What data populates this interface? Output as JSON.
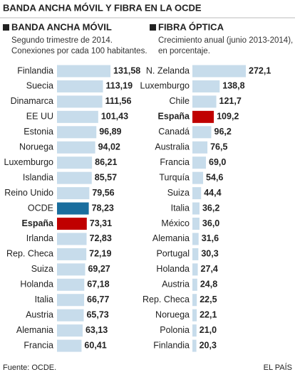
{
  "title": "BANDA ANCHA MÓVIL Y FIBRA EN LA OCDE",
  "source": "Fuente: OCDE.",
  "brand": "EL PAÍS",
  "chart_data": [
    {
      "type": "bar",
      "orientation": "horizontal",
      "title": "BANDA ANCHA MÓVIL",
      "subtitle": [
        "Segundo trimestre de 2014.",
        "Conexiones por cada 100 habitantes."
      ],
      "categories": [
        "Finlandia",
        "Suecia",
        "Dinamarca",
        "EE UU",
        "Estonia",
        "Noruega",
        "Luxemburgo",
        "Islandia",
        "Reino Unido",
        "OCDE",
        "España",
        "Irlanda",
        "Rep. Checa",
        "Suiza",
        "Holanda",
        "Italia",
        "Austria",
        "Alemania",
        "Francia"
      ],
      "values": [
        131.58,
        113.19,
        111.56,
        101.43,
        96.89,
        94.02,
        86.21,
        85.57,
        79.56,
        78.23,
        73.31,
        72.83,
        72.19,
        69.27,
        67.18,
        66.77,
        65.73,
        63.13,
        60.41
      ],
      "value_labels": [
        "131,58",
        "113,19",
        "111,56",
        "101,43",
        "96,89",
        "94,02",
        "86,21",
        "85,57",
        "79,56",
        "78,23",
        "73,31",
        "72,83",
        "72,19",
        "69,27",
        "67,18",
        "66,77",
        "65,73",
        "63,13",
        "60,41"
      ],
      "color": "#c7dceb",
      "highlight": {
        "9": "#1a6e9e",
        "10": "#c00000"
      },
      "bold": [
        10
      ]
    },
    {
      "type": "bar",
      "orientation": "horizontal",
      "title": "FIBRA ÓPTICA",
      "subtitle": [
        "Crecimiento anual (junio 2013-2014),",
        "en porcentaje."
      ],
      "categories": [
        "N. Zelanda",
        "Luxemburgo",
        "Chile",
        "España",
        "Canadá",
        "Australia",
        "Francia",
        "Turquía",
        "Suiza",
        "Italia",
        "México",
        "Alemania",
        "Portugal",
        "Holanda",
        "Austria",
        "Rep. Checa",
        "Noruega",
        "Polonia",
        "Finlandia"
      ],
      "values": [
        272.1,
        138.8,
        121.7,
        109.2,
        96.2,
        76.5,
        69.0,
        54.6,
        44.4,
        36.2,
        36.0,
        31.6,
        30.3,
        27.4,
        24.8,
        22.5,
        22.1,
        21.0,
        20.3
      ],
      "value_labels": [
        "272,1",
        "138,8",
        "121,7",
        "109,2",
        "96,2",
        "76,5",
        "69,0",
        "54,6",
        "44,4",
        "36,2",
        "36,0",
        "31,6",
        "30,3",
        "27,4",
        "24,8",
        "22,5",
        "22,1",
        "21,0",
        "20,3"
      ],
      "color": "#c7dceb",
      "highlight": {
        "3": "#c00000"
      },
      "bold": [
        3
      ]
    }
  ]
}
